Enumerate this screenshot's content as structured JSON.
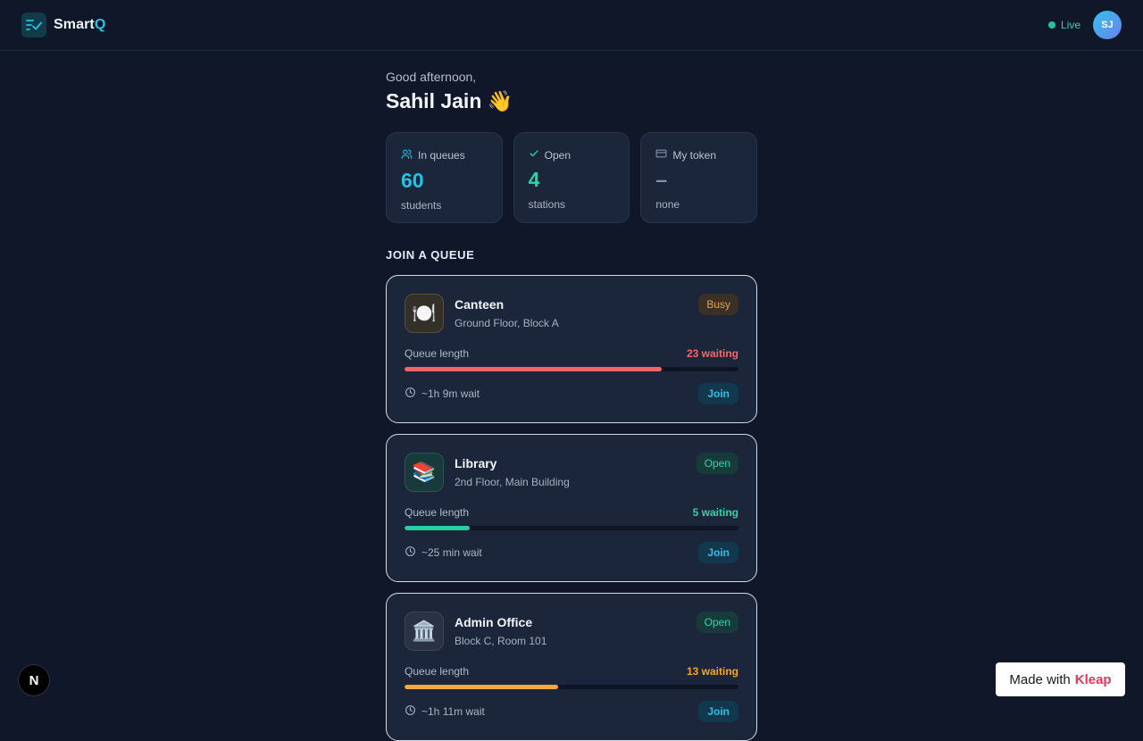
{
  "header": {
    "brand_main": "Smart",
    "brand_accent": "Q",
    "live_label": "Live",
    "avatar_initials": "SJ"
  },
  "greeting": {
    "salutation": "Good afternoon,",
    "name": "Sahil Jain 👋"
  },
  "stats": [
    {
      "label": "In queues",
      "value": "60",
      "sub": "students",
      "icon": "users-icon",
      "value_color": "#22c3e6"
    },
    {
      "label": "Open",
      "value": "4",
      "sub": "stations",
      "icon": "check-icon",
      "value_color": "#2dd4a7"
    },
    {
      "label": "My token",
      "value": "–",
      "sub": "none",
      "icon": "card-icon",
      "value_color": "#8391a5"
    }
  ],
  "section_title": "JOIN A QUEUE",
  "stations": [
    {
      "name": "Canteen",
      "location": "Ground Floor, Block A",
      "emoji": "🍽️",
      "status": "Busy",
      "status_color": "#f0a040",
      "status_bg": "#3a3026",
      "icon_bg": "#33302a",
      "icon_border": "#5a4f3d",
      "queue_label": "Queue length",
      "waiting": "23 waiting",
      "waiting_color": "#f06a6a",
      "fill": 0.77,
      "fill_color": "#f0656a",
      "wait_time": "~1h 9m wait",
      "join_label": "Join"
    },
    {
      "name": "Library",
      "location": "2nd Floor, Main Building",
      "emoji": "📚",
      "status": "Open",
      "status_color": "#2dd4a7",
      "status_bg": "#173a3a",
      "icon_bg": "#183a3b",
      "icon_border": "#2a5656",
      "queue_label": "Queue length",
      "waiting": "5 waiting",
      "waiting_color": "#2dd4a7",
      "fill": 0.195,
      "fill_color": "#26cf9f",
      "wait_time": "~25 min wait",
      "join_label": "Join"
    },
    {
      "name": "Admin Office",
      "location": "Block C, Room 101",
      "emoji": "🏛️",
      "status": "Open",
      "status_color": "#2dd4a7",
      "status_bg": "#173a3a",
      "icon_bg": "#2a3346",
      "icon_border": "#3b465c",
      "queue_label": "Queue length",
      "waiting": "13 waiting",
      "waiting_color": "#f5a623",
      "fill": 0.46,
      "fill_color": "#f5a83a",
      "wait_time": "~1h 11m wait",
      "join_label": "Join"
    }
  ],
  "footer": {
    "n_badge": "N",
    "made_with": "Made with",
    "made_with_brand": "Kleap"
  }
}
